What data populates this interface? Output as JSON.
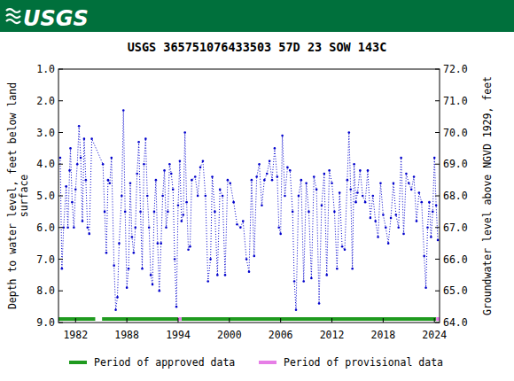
{
  "header": {
    "logo": "USGS"
  },
  "chart_data": {
    "type": "line",
    "title": "USGS 365751076433503 57D 23 SOW 143C",
    "y_label": "Depth to water level, feet below land surface",
    "y2_label": "Groundwater level above NGVD 1929, feet",
    "xlim": [
      1980.0,
      2024.6
    ],
    "xticks": [
      1982,
      1988,
      1994,
      2000,
      2006,
      2012,
      2018,
      2024
    ],
    "ylim": [
      9,
      1
    ],
    "yticks": [
      {
        "value": 1,
        "label": "1.0"
      },
      {
        "value": 2,
        "label": "2.0"
      },
      {
        "value": 3,
        "label": "3.0"
      },
      {
        "value": 4,
        "label": "4.0"
      },
      {
        "value": 5,
        "label": "5.0"
      },
      {
        "value": 6,
        "label": "6.0"
      },
      {
        "value": 7,
        "label": "7.0"
      },
      {
        "value": 8,
        "label": "8.0"
      },
      {
        "value": 9,
        "label": "9.0"
      }
    ],
    "y2lim": [
      64,
      72
    ],
    "y2ticks": [
      {
        "value": 64,
        "label": "64.0"
      },
      {
        "value": 65,
        "label": "65.0"
      },
      {
        "value": 66,
        "label": "66.0"
      },
      {
        "value": 67,
        "label": "67.0"
      },
      {
        "value": 68,
        "label": "68.0"
      },
      {
        "value": 69,
        "label": "69.0"
      },
      {
        "value": 70,
        "label": "70.0"
      },
      {
        "value": 71,
        "label": "71.0"
      },
      {
        "value": 72,
        "label": "72.0"
      }
    ],
    "grid": false,
    "x": [
      1980.2,
      1980.4,
      1980.6,
      1980.9,
      1981.1,
      1981.3,
      1981.4,
      1981.6,
      1981.8,
      1982.0,
      1982.2,
      1982.4,
      1982.6,
      1982.8,
      1983.0,
      1983.2,
      1983.4,
      1983.6,
      1983.9,
      1985.2,
      1985.4,
      1985.6,
      1985.8,
      1986.0,
      1986.2,
      1986.5,
      1986.7,
      1986.9,
      1987.1,
      1987.4,
      1987.6,
      1987.8,
      1988.0,
      1988.2,
      1988.4,
      1988.6,
      1988.8,
      1989.0,
      1989.2,
      1989.4,
      1989.6,
      1989.8,
      1990.0,
      1990.2,
      1990.4,
      1990.6,
      1990.8,
      1991.0,
      1991.2,
      1991.4,
      1991.6,
      1991.8,
      1992.0,
      1992.2,
      1992.4,
      1992.6,
      1992.8,
      1993.0,
      1993.2,
      1993.4,
      1993.6,
      1993.8,
      1994.0,
      1994.2,
      1994.4,
      1994.6,
      1994.8,
      1995.0,
      1995.2,
      1995.4,
      1995.6,
      1996.0,
      1996.3,
      1996.6,
      1996.9,
      1997.2,
      1997.5,
      1997.8,
      1998.0,
      1998.3,
      1998.6,
      1998.9,
      1999.2,
      1999.5,
      1999.8,
      2000.1,
      2000.5,
      2000.9,
      2001.3,
      2001.6,
      2002.0,
      2002.3,
      2002.6,
      2002.9,
      2003.2,
      2003.5,
      2003.8,
      2004.1,
      2004.4,
      2004.7,
      2005.0,
      2005.3,
      2005.6,
      2005.8,
      2006.0,
      2006.2,
      2006.5,
      2006.8,
      2007.1,
      2007.4,
      2007.6,
      2007.8,
      2008.1,
      2008.4,
      2008.7,
      2009.0,
      2009.3,
      2009.6,
      2009.9,
      2010.2,
      2010.5,
      2010.8,
      2011.1,
      2011.4,
      2011.7,
      2012.0,
      2012.3,
      2012.6,
      2012.9,
      2013.2,
      2013.5,
      2013.8,
      2014.0,
      2014.2,
      2014.4,
      2014.6,
      2014.8,
      2015.0,
      2015.3,
      2015.6,
      2015.9,
      2016.2,
      2016.5,
      2016.8,
      2017.1,
      2017.4,
      2017.7,
      2018.0,
      2018.3,
      2018.6,
      2018.9,
      2019.2,
      2019.5,
      2019.8,
      2020.1,
      2020.4,
      2020.7,
      2021.0,
      2021.3,
      2021.6,
      2021.9,
      2022.2,
      2022.5,
      2022.8,
      2023.0,
      2023.2,
      2023.4,
      2023.6,
      2023.8,
      2024.0,
      2024.2,
      2024.4
    ],
    "series": [
      {
        "name": "Depth to water level",
        "color": "#0000cc",
        "marker": "point",
        "line_style": "dotted",
        "values": [
          3.8,
          7.3,
          6.0,
          4.7,
          6.0,
          4.2,
          3.5,
          5.2,
          6.0,
          4.8,
          4.0,
          2.8,
          3.8,
          5.8,
          3.2,
          4.5,
          6.0,
          6.2,
          3.2,
          4.0,
          5.5,
          6.8,
          4.5,
          4.6,
          3.8,
          7.2,
          8.6,
          8.2,
          6.5,
          5.0,
          2.3,
          5.5,
          7.9,
          7.3,
          4.6,
          6.3,
          6.8,
          6.0,
          4.3,
          3.3,
          5.5,
          7.3,
          4.0,
          3.2,
          5.0,
          6.0,
          7.5,
          7.8,
          5.5,
          4.5,
          6.5,
          8.0,
          6.5,
          5.0,
          4.2,
          6.0,
          5.5,
          4.0,
          4.3,
          4.8,
          7.0,
          8.5,
          5.3,
          3.9,
          5.8,
          5.6,
          3.0,
          5.2,
          6.7,
          6.6,
          4.5,
          4.4,
          5.0,
          4.1,
          3.9,
          5.0,
          7.7,
          7.0,
          4.4,
          5.5,
          7.5,
          4.8,
          5.0,
          7.5,
          4.5,
          4.6,
          5.2,
          5.9,
          6.0,
          5.8,
          7.0,
          7.4,
          4.5,
          6.9,
          4.4,
          4.0,
          5.3,
          4.5,
          4.3,
          3.9,
          4.5,
          3.5,
          4.4,
          6.0,
          6.2,
          3.1,
          5.0,
          4.1,
          4.2,
          5.5,
          7.7,
          8.6,
          5.0,
          4.5,
          7.7,
          4.6,
          5.5,
          7.6,
          4.4,
          4.8,
          8.4,
          5.3,
          4.3,
          7.5,
          4.2,
          4.6,
          5.5,
          7.3,
          4.9,
          6.6,
          6.7,
          4.5,
          3.0,
          4.8,
          7.3,
          4.0,
          5.2,
          4.9,
          4.2,
          5.0,
          5.2,
          4.2,
          5.7,
          5.0,
          5.8,
          6.3,
          4.6,
          5.6,
          6.0,
          6.5,
          5.7,
          4.6,
          5.6,
          6.0,
          3.8,
          6.2,
          4.3,
          4.6,
          4.8,
          4.4,
          5.8,
          4.9,
          5.2,
          6.9,
          7.9,
          6.0,
          5.2,
          6.3,
          5.5,
          3.8,
          5.3,
          6.4
        ]
      }
    ],
    "periods": [
      {
        "name": "Period of approved data",
        "color": "#1f9a1f",
        "start": [
          1980.0,
          1985.1,
          1994.4
        ],
        "end": [
          1984.3,
          1994.0,
          2024.2
        ]
      },
      {
        "name": "Period of provisional data",
        "color": "#e67ee6",
        "start": [
          1994.0,
          2024.2
        ],
        "end": [
          1994.4,
          2024.6
        ]
      }
    ]
  }
}
